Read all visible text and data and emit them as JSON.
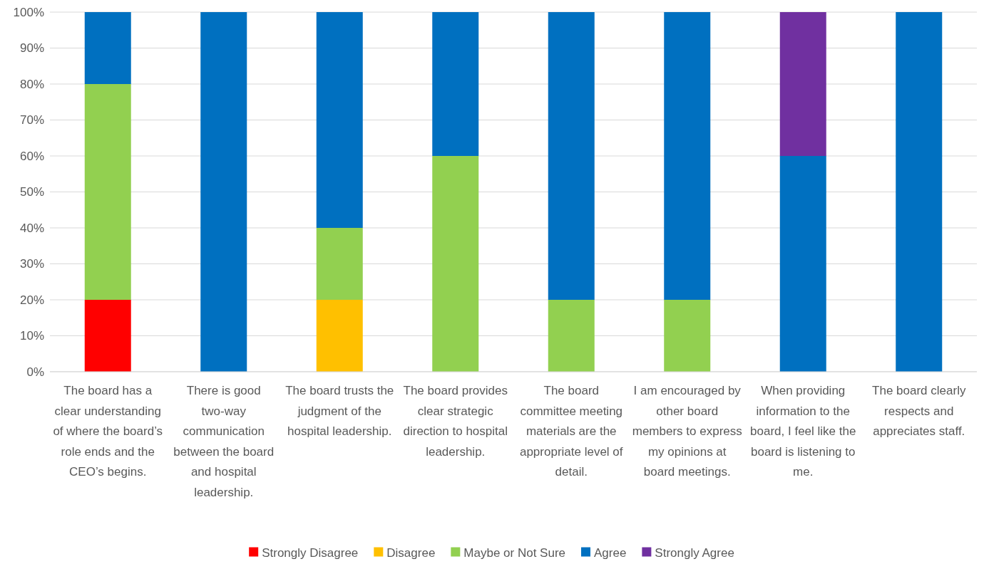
{
  "chart_data": {
    "type": "bar",
    "stacked": true,
    "categories": [
      "The board has a clear understanding of where the board’s role ends and the CEO’s begins.",
      "There is good two-way communication between the board and hospital leadership.",
      "The board trusts the judgment of the hospital leadership.",
      "The board provides clear strategic direction to hospital leadership.",
      "The board committee meeting materials are the appropriate level of detail.",
      "I am encouraged by other board members to express my opinions at board meetings.",
      "When providing information to the board, I feel like the board is listening to me.",
      "The board clearly respects and appreciates staff."
    ],
    "series": [
      {
        "name": "Strongly Disagree",
        "color": "#ff0000",
        "values": [
          20,
          0,
          0,
          0,
          0,
          0,
          0,
          0
        ]
      },
      {
        "name": "Disagree",
        "color": "#ffc000",
        "values": [
          0,
          0,
          20,
          0,
          0,
          0,
          0,
          0
        ]
      },
      {
        "name": "Maybe or Not Sure",
        "color": "#92d050",
        "values": [
          60,
          0,
          20,
          60,
          20,
          20,
          0,
          0
        ]
      },
      {
        "name": "Agree",
        "color": "#0070c0",
        "values": [
          20,
          100,
          60,
          40,
          80,
          80,
          60,
          100
        ]
      },
      {
        "name": "Strongly Agree",
        "color": "#7030a0",
        "values": [
          0,
          0,
          0,
          0,
          0,
          0,
          40,
          0
        ]
      }
    ],
    "ylim": [
      0,
      100
    ],
    "yticks": [
      {
        "value": 0,
        "label": "0%"
      },
      {
        "value": 10,
        "label": "10%"
      },
      {
        "value": 20,
        "label": "20%"
      },
      {
        "value": 30,
        "label": "30%"
      },
      {
        "value": 40,
        "label": "40%"
      },
      {
        "value": 50,
        "label": "50%"
      },
      {
        "value": 60,
        "label": "60%"
      },
      {
        "value": 70,
        "label": "70%"
      },
      {
        "value": 80,
        "label": "80%"
      },
      {
        "value": 90,
        "label": "90%"
      },
      {
        "value": 100,
        "label": "100%"
      }
    ],
    "grid": "y",
    "legend": "bottom"
  }
}
